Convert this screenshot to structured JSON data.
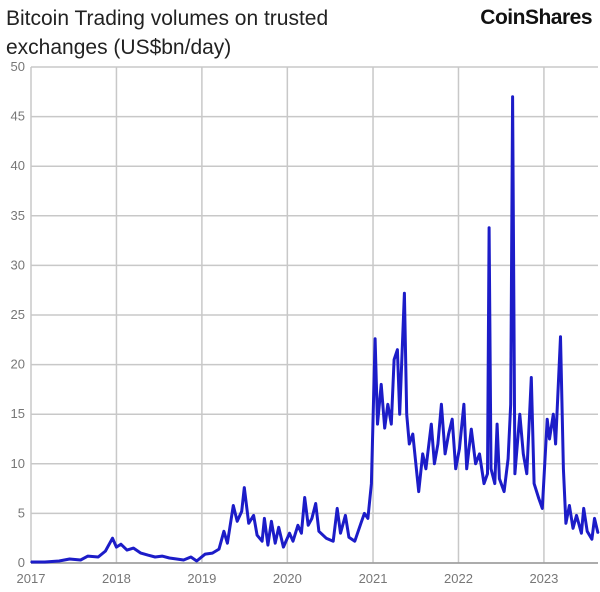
{
  "logo_text": "CoinShares",
  "chart_data": {
    "type": "line",
    "title": "Bitcoin Trading volumes on trusted exchanges (US$bn/day)",
    "xlabel": "",
    "ylabel": "",
    "ylim": [
      0,
      50
    ],
    "xlim": [
      "2017-01-01",
      "2023-08-20"
    ],
    "yticks": [
      0,
      5,
      10,
      15,
      20,
      25,
      30,
      35,
      40,
      45,
      50
    ],
    "xticks": [
      "2017",
      "2018",
      "2019",
      "2020",
      "2021",
      "2022",
      "2023"
    ],
    "grid": true,
    "line_color": "#1c1cc8",
    "series": [
      {
        "points": [
          [
            "2017-01-01",
            0.1
          ],
          [
            "2017-03-01",
            0.1
          ],
          [
            "2017-05-01",
            0.2
          ],
          [
            "2017-06-15",
            0.4
          ],
          [
            "2017-08-01",
            0.3
          ],
          [
            "2017-09-01",
            0.7
          ],
          [
            "2017-10-15",
            0.6
          ],
          [
            "2017-11-15",
            1.2
          ],
          [
            "2017-12-15",
            2.5
          ],
          [
            "2018-01-01",
            1.6
          ],
          [
            "2018-01-20",
            1.9
          ],
          [
            "2018-02-15",
            1.3
          ],
          [
            "2018-03-15",
            1.5
          ],
          [
            "2018-04-15",
            1.0
          ],
          [
            "2018-05-15",
            0.8
          ],
          [
            "2018-06-15",
            0.6
          ],
          [
            "2018-07-15",
            0.7
          ],
          [
            "2018-08-15",
            0.5
          ],
          [
            "2018-09-15",
            0.4
          ],
          [
            "2018-10-15",
            0.3
          ],
          [
            "2018-11-15",
            0.6
          ],
          [
            "2018-12-10",
            0.2
          ],
          [
            "2019-01-15",
            0.9
          ],
          [
            "2019-02-15",
            1.0
          ],
          [
            "2019-03-15",
            1.4
          ],
          [
            "2019-04-05",
            3.2
          ],
          [
            "2019-04-20",
            2.0
          ],
          [
            "2019-05-15",
            5.8
          ],
          [
            "2019-06-01",
            4.2
          ],
          [
            "2019-06-20",
            5.2
          ],
          [
            "2019-07-01",
            7.6
          ],
          [
            "2019-07-20",
            4.0
          ],
          [
            "2019-08-10",
            4.8
          ],
          [
            "2019-08-25",
            2.8
          ],
          [
            "2019-09-15",
            2.2
          ],
          [
            "2019-09-25",
            4.5
          ],
          [
            "2019-10-10",
            1.8
          ],
          [
            "2019-10-25",
            4.2
          ],
          [
            "2019-11-10",
            2.0
          ],
          [
            "2019-11-25",
            3.6
          ],
          [
            "2019-12-15",
            1.6
          ],
          [
            "2020-01-10",
            3.0
          ],
          [
            "2020-01-25",
            2.2
          ],
          [
            "2020-02-15",
            3.8
          ],
          [
            "2020-03-01",
            3.0
          ],
          [
            "2020-03-15",
            6.6
          ],
          [
            "2020-03-30",
            3.8
          ],
          [
            "2020-04-15",
            4.5
          ],
          [
            "2020-05-01",
            6.0
          ],
          [
            "2020-05-15",
            3.2
          ],
          [
            "2020-06-15",
            2.5
          ],
          [
            "2020-07-15",
            2.2
          ],
          [
            "2020-08-01",
            5.5
          ],
          [
            "2020-08-15",
            3.0
          ],
          [
            "2020-09-05",
            4.8
          ],
          [
            "2020-09-20",
            2.6
          ],
          [
            "2020-10-15",
            2.2
          ],
          [
            "2020-11-10",
            4.0
          ],
          [
            "2020-11-25",
            5.0
          ],
          [
            "2020-12-10",
            4.5
          ],
          [
            "2020-12-25",
            8.0
          ],
          [
            "2021-01-10",
            22.6
          ],
          [
            "2021-01-20",
            14.0
          ],
          [
            "2021-02-05",
            18.0
          ],
          [
            "2021-02-20",
            13.6
          ],
          [
            "2021-03-05",
            16.0
          ],
          [
            "2021-03-20",
            14.0
          ],
          [
            "2021-04-01",
            20.5
          ],
          [
            "2021-04-15",
            21.5
          ],
          [
            "2021-04-25",
            15.0
          ],
          [
            "2021-05-15",
            27.2
          ],
          [
            "2021-05-25",
            15.0
          ],
          [
            "2021-06-05",
            12.0
          ],
          [
            "2021-06-20",
            13.0
          ],
          [
            "2021-07-15",
            7.2
          ],
          [
            "2021-08-01",
            11.0
          ],
          [
            "2021-08-15",
            9.5
          ],
          [
            "2021-09-07",
            14.0
          ],
          [
            "2021-09-20",
            10.0
          ],
          [
            "2021-10-05",
            12.0
          ],
          [
            "2021-10-20",
            16.0
          ],
          [
            "2021-11-05",
            11.0
          ],
          [
            "2021-11-20",
            13.0
          ],
          [
            "2021-12-05",
            14.5
          ],
          [
            "2021-12-20",
            9.5
          ],
          [
            "2022-01-05",
            11.5
          ],
          [
            "2022-01-24",
            16.0
          ],
          [
            "2022-02-05",
            9.5
          ],
          [
            "2022-02-25",
            13.5
          ],
          [
            "2022-03-15",
            10.0
          ],
          [
            "2022-04-01",
            11.0
          ],
          [
            "2022-04-20",
            8.0
          ],
          [
            "2022-05-05",
            9.0
          ],
          [
            "2022-05-12",
            33.8
          ],
          [
            "2022-05-20",
            9.5
          ],
          [
            "2022-06-05",
            8.0
          ],
          [
            "2022-06-15",
            14.0
          ],
          [
            "2022-06-25",
            8.5
          ],
          [
            "2022-07-15",
            7.2
          ],
          [
            "2022-08-01",
            10.5
          ],
          [
            "2022-08-12",
            16.0
          ],
          [
            "2022-08-20",
            47.0
          ],
          [
            "2022-08-30",
            9.0
          ],
          [
            "2022-09-20",
            15.0
          ],
          [
            "2022-10-05",
            11.0
          ],
          [
            "2022-10-20",
            9.0
          ],
          [
            "2022-11-08",
            18.7
          ],
          [
            "2022-11-20",
            8.0
          ],
          [
            "2022-12-10",
            6.5
          ],
          [
            "2022-12-25",
            5.5
          ],
          [
            "2023-01-15",
            14.5
          ],
          [
            "2023-01-25",
            12.5
          ],
          [
            "2023-02-10",
            15.0
          ],
          [
            "2023-02-20",
            12.0
          ],
          [
            "2023-03-13",
            22.8
          ],
          [
            "2023-03-25",
            9.5
          ],
          [
            "2023-04-05",
            4.0
          ],
          [
            "2023-04-20",
            5.8
          ],
          [
            "2023-05-05",
            3.5
          ],
          [
            "2023-05-20",
            4.8
          ],
          [
            "2023-06-10",
            3.0
          ],
          [
            "2023-06-20",
            5.5
          ],
          [
            "2023-07-05",
            3.2
          ],
          [
            "2023-07-25",
            2.4
          ],
          [
            "2023-08-05",
            4.5
          ],
          [
            "2023-08-20",
            3.0
          ]
        ]
      }
    ]
  }
}
